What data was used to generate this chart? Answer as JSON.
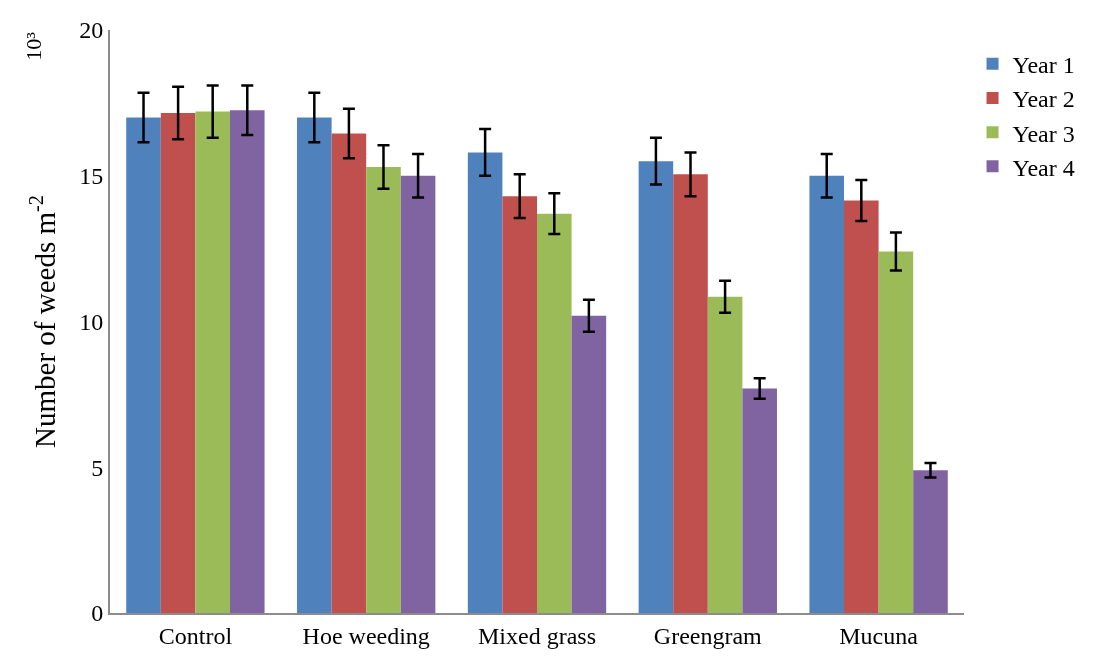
{
  "chart_data": {
    "type": "bar",
    "categories": [
      "Control",
      "Hoe weeding",
      "Mixed grass",
      "Greengram",
      "Mucuna"
    ],
    "series": [
      {
        "name": "Year 1",
        "color": "#4f81bd",
        "values": [
          17.0,
          17.0,
          15.8,
          15.5,
          15.0
        ],
        "errors": [
          0.85,
          0.85,
          0.8,
          0.8,
          0.75
        ]
      },
      {
        "name": "Year 2",
        "color": "#c0504d",
        "values": [
          17.15,
          16.45,
          14.3,
          15.05,
          14.15
        ],
        "errors": [
          0.9,
          0.85,
          0.75,
          0.75,
          0.7
        ]
      },
      {
        "name": "Year 3",
        "color": "#9bbb59",
        "values": [
          17.2,
          15.3,
          13.7,
          10.85,
          12.4
        ],
        "errors": [
          0.9,
          0.75,
          0.7,
          0.55,
          0.65
        ]
      },
      {
        "name": "Year 4",
        "color": "#8064a2",
        "values": [
          17.25,
          15.0,
          10.2,
          7.7,
          4.9
        ],
        "errors": [
          0.85,
          0.75,
          0.55,
          0.35,
          0.25
        ]
      }
    ],
    "ylabel": "Number of weeds m$^{-2}$",
    "annotations": [
      "10³"
    ],
    "ylim": [
      0,
      20
    ],
    "yticks": [
      0,
      5,
      10,
      15,
      20
    ],
    "legend": "top right"
  }
}
